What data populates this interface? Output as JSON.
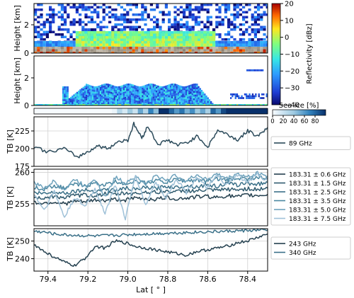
{
  "chart_data": [
    {
      "type": "heatmap",
      "ylabel": "Height [km]",
      "yticks": [
        0,
        2
      ],
      "ylim": [
        0,
        3.3
      ],
      "colorbar": {
        "label": "Reflectivity [dBz]",
        "ticks": [
          20,
          10,
          0,
          -10,
          -20,
          -30,
          -40
        ],
        "range": [
          -40,
          20
        ]
      },
      "description_values": {
        "lat_start": 79.47,
        "lat_end": 78.3
      }
    },
    {
      "type": "heatmap",
      "ylabel": "Height [km]",
      "yticks": [
        0,
        2
      ],
      "ylim": [
        0,
        2.6
      ]
    },
    {
      "type": "heatmap",
      "label": "Sea ice [%]",
      "colorbar": {
        "label": "Sea ice [%]",
        "ticks": [
          0,
          20,
          40,
          60,
          80
        ],
        "range": [
          0,
          100
        ]
      },
      "values": [
        0,
        0,
        0,
        0,
        0,
        0,
        0,
        0,
        0,
        0,
        0,
        0,
        0,
        0,
        0,
        5,
        30,
        15,
        40,
        20,
        55,
        30,
        70,
        45,
        100,
        100,
        80,
        60,
        75,
        50,
        65,
        40,
        55,
        35,
        80,
        60,
        90,
        100,
        100,
        100,
        100,
        100,
        100,
        100,
        100
      ]
    },
    {
      "type": "line",
      "ylabel": "TB [K]",
      "yticks": [
        175,
        200,
        225
      ],
      "ylim": [
        175,
        245
      ],
      "series": [
        {
          "name": "89 GHz",
          "color": "#2b4a5a",
          "x": [
            79.47,
            79.4,
            79.32,
            79.25,
            79.2,
            79.15,
            79.1,
            79.05,
            79.0,
            78.97,
            78.93,
            78.9,
            78.85,
            78.8,
            78.75,
            78.7,
            78.65,
            78.6,
            78.55,
            78.5,
            78.45,
            78.4,
            78.35,
            78.3
          ],
          "y": [
            203,
            195,
            200,
            188,
            196,
            204,
            200,
            210,
            212,
            235,
            215,
            232,
            206,
            212,
            205,
            209,
            218,
            202,
            226,
            220,
            212,
            225,
            218,
            230
          ]
        }
      ]
    },
    {
      "type": "line",
      "ylabel": "TB [K]",
      "yticks": [
        255,
        260
      ],
      "ylim": [
        251.5,
        260.5
      ],
      "series": [
        {
          "name": "183.31 ± 0.6 GHz",
          "color": "#24404f",
          "y": [
            255.2,
            255.1,
            255.3,
            255.0,
            255.4,
            255.3,
            255.6,
            255.5,
            255.7,
            255.6,
            255.9,
            255.8,
            255.7,
            256.0,
            255.8,
            255.9,
            256.1,
            256.2,
            256.0,
            256.3,
            256.1,
            256.4,
            256.3,
            256.5
          ]
        },
        {
          "name": "183.31 ± 1.5 GHz",
          "color": "#2f5a6e",
          "y": [
            256.0,
            255.9,
            256.2,
            256.0,
            256.3,
            256.4,
            256.3,
            256.6,
            256.5,
            256.7,
            256.6,
            256.9,
            256.8,
            257.0,
            256.9,
            257.1,
            257.0,
            257.2,
            257.1,
            257.3,
            257.2,
            257.4,
            257.3,
            257.5
          ]
        },
        {
          "name": "183.31 ± 2.5 GHz",
          "color": "#3a7088",
          "y": [
            256.8,
            256.6,
            256.9,
            256.7,
            257.0,
            257.2,
            257.0,
            257.3,
            257.1,
            257.5,
            257.2,
            257.6,
            257.4,
            257.8,
            257.6,
            257.9,
            257.7,
            258.0,
            257.8,
            258.2,
            258.0,
            258.3,
            258.1,
            258.4
          ]
        },
        {
          "name": "183.31 ± 3.5 GHz",
          "color": "#4a86a0",
          "y": [
            257.6,
            257.3,
            257.9,
            257.5,
            258.1,
            257.8,
            258.3,
            258.0,
            258.5,
            258.2,
            258.6,
            258.3,
            258.7,
            258.4,
            258.9,
            258.6,
            258.8,
            258.5,
            259.0,
            258.7,
            259.1,
            258.9,
            259.2,
            259.0
          ]
        },
        {
          "name": "183.31 ± 5.0 GHz",
          "color": "#6ea2bc",
          "y": [
            258.3,
            257.5,
            258.6,
            257.2,
            258.9,
            257.8,
            259.0,
            256.0,
            259.2,
            258.4,
            259.3,
            258.1,
            259.4,
            258.8,
            259.5,
            258.6,
            259.6,
            258.9,
            259.7,
            259.0,
            259.8,
            259.2,
            259.9,
            259.4
          ]
        },
        {
          "name": "183.31 ± 7.5 GHz",
          "color": "#9fc1d8",
          "y": [
            256.5,
            254.0,
            257.0,
            252.8,
            256.0,
            254.5,
            257.5,
            253.5,
            258.0,
            252.6,
            259.5,
            254.8,
            258.5,
            256.0,
            259.0,
            256.8,
            259.2,
            257.5,
            259.4,
            258.0,
            259.6,
            258.3,
            259.8,
            258.6
          ]
        }
      ]
    },
    {
      "type": "line",
      "xlabel": "Lat [$^\\circ$]",
      "xlabel_display": "Lat [ ° ]",
      "ylabel": "TB [K]",
      "yticks": [
        240,
        250
      ],
      "ylim": [
        233,
        257
      ],
      "xticks": [
        79.4,
        79.2,
        79.0,
        78.8,
        78.6,
        78.4
      ],
      "xlim": [
        79.47,
        78.3
      ],
      "series": [
        {
          "name": "243 GHz",
          "color": "#24404f",
          "y": [
            248,
            244,
            241,
            238,
            236,
            240,
            247,
            246,
            250,
            249,
            247,
            246,
            245,
            244,
            243,
            242,
            244,
            245,
            246,
            247,
            249,
            250,
            252,
            254
          ]
        },
        {
          "name": "340 GHz",
          "color": "#3a7088",
          "y": [
            255.5,
            255.0,
            254.0,
            253.5,
            253.2,
            253.0,
            252.8,
            253.0,
            253.2,
            253.5,
            253.8,
            254.0,
            254.2,
            254.4,
            254.6,
            254.8,
            255.0,
            255.2,
            255.3,
            255.5,
            255.7,
            255.9,
            256.1,
            256.3
          ]
        }
      ]
    }
  ],
  "labels": {
    "height1": "Height [km]",
    "height2": "Height [km]",
    "tb1": "TB [K]",
    "tb2": "TB [K]",
    "tb3": "TB [K]",
    "refl": "Reflectivity [dBz]",
    "seaice": "Sea ice [%]",
    "lat": "Lat [ ° ]"
  }
}
